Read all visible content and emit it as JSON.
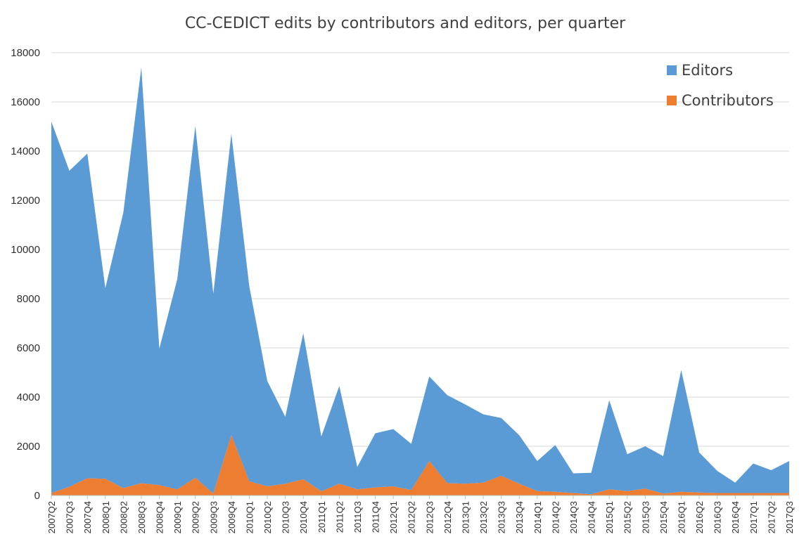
{
  "chart_data": {
    "type": "area",
    "stacked": true,
    "title": "CC-CEDICT edits by contributors and editors, per quarter",
    "xlabel": "",
    "ylabel": "",
    "ylim": [
      0,
      18000
    ],
    "yticks": [
      0,
      2000,
      4000,
      6000,
      8000,
      10000,
      12000,
      14000,
      16000,
      18000
    ],
    "grid": true,
    "legend_position": "top-right",
    "categories": [
      "2007Q2",
      "2007Q3",
      "2007Q4",
      "2008Q1",
      "2008Q2",
      "2008Q3",
      "2008Q4",
      "2009Q1",
      "2009Q2",
      "2009Q3",
      "2009Q4",
      "2010Q1",
      "2010Q2",
      "2010Q3",
      "2010Q4",
      "2011Q1",
      "2011Q2",
      "2011Q3",
      "2011Q4",
      "2012Q1",
      "2012Q2",
      "2012Q3",
      "2012Q4",
      "2013Q1",
      "2013Q2",
      "2013Q3",
      "2013Q4",
      "2014Q1",
      "2014Q2",
      "2014Q3",
      "2014Q4",
      "2015Q1",
      "2015Q2",
      "2015Q3",
      "2015Q4",
      "2016Q1",
      "2016Q2",
      "2016Q3",
      "2016Q4",
      "2017Q1",
      "2017Q2",
      "2017Q3"
    ],
    "series": [
      {
        "name": "Contributors",
        "color": "#ed7d31",
        "values": [
          100,
          350,
          700,
          680,
          300,
          500,
          420,
          250,
          720,
          80,
          2450,
          580,
          370,
          480,
          660,
          170,
          480,
          250,
          330,
          370,
          220,
          1400,
          500,
          480,
          520,
          800,
          480,
          180,
          150,
          100,
          50,
          250,
          180,
          280,
          80,
          150,
          120,
          100,
          100,
          100,
          100,
          100
        ]
      },
      {
        "name": "Editors",
        "color": "#5b9bd5",
        "values": [
          15100,
          12850,
          13200,
          7750,
          11200,
          16900,
          5550,
          8550,
          14300,
          8120,
          12250,
          7920,
          4280,
          2720,
          5940,
          2230,
          3970,
          910,
          2200,
          2330,
          1880,
          3440,
          3580,
          3220,
          2780,
          2350,
          1970,
          1220,
          1900,
          800,
          870,
          3620,
          1500,
          1720,
          1520,
          4950,
          1630,
          900,
          420,
          1200,
          930,
          1300
        ]
      }
    ],
    "legend": [
      {
        "label": "Editors",
        "color": "#5b9bd5"
      },
      {
        "label": "Contributors",
        "color": "#ed7d31"
      }
    ]
  }
}
